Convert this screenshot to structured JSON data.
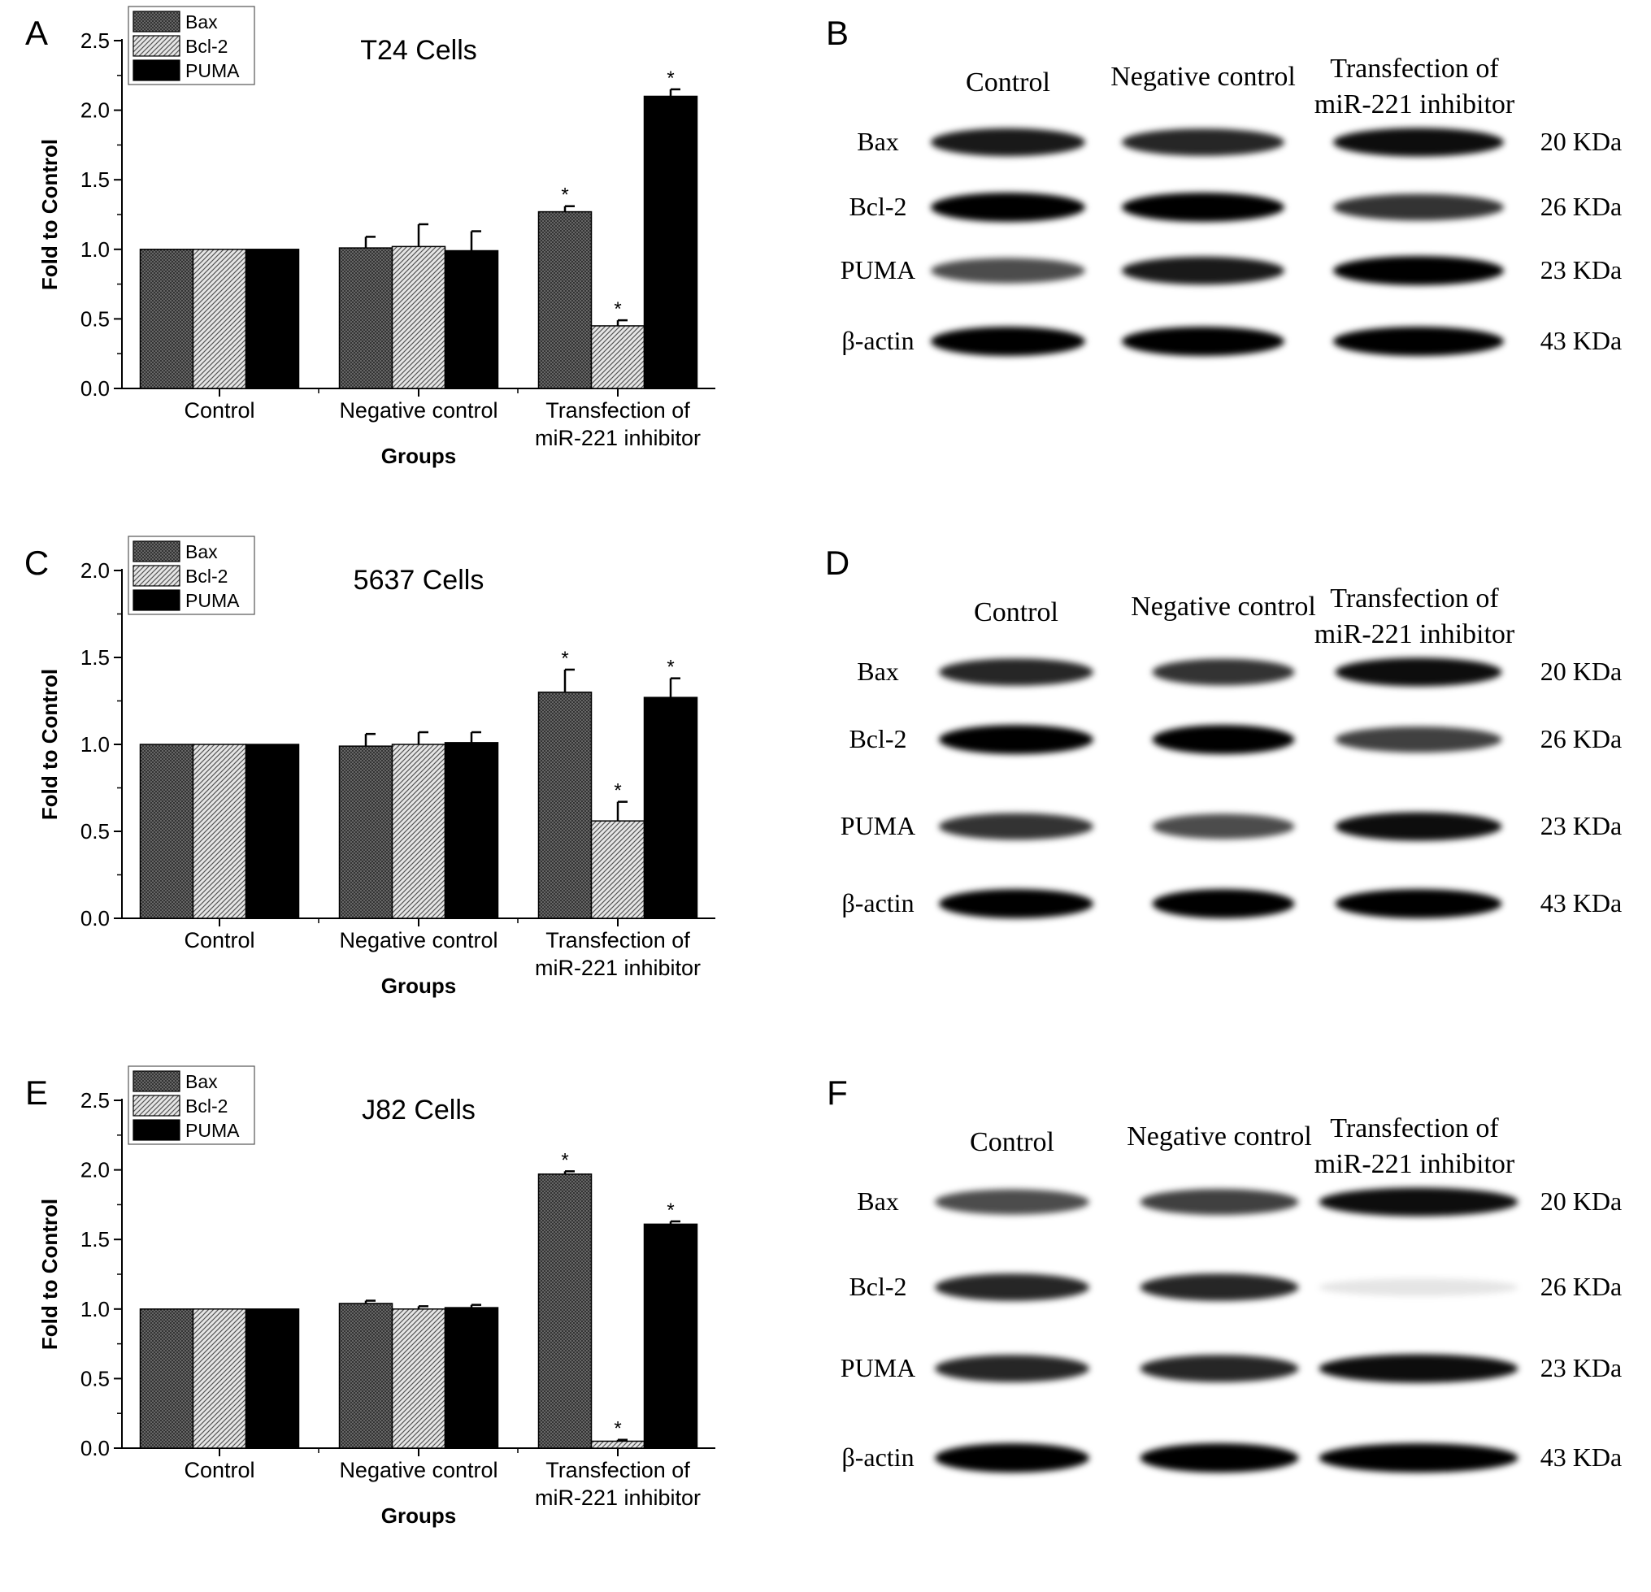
{
  "chart_data": [
    {
      "panel": "A",
      "type": "bar",
      "title": "T24 Cells",
      "xlabel": "Groups",
      "ylabel": "Fold to Control",
      "ylim": [
        0,
        2.5
      ],
      "yticks": [
        "0.0",
        "0.5",
        "1.0",
        "1.5",
        "2.0",
        "2.5"
      ],
      "categories": [
        [
          "Control"
        ],
        [
          "Negative control"
        ],
        [
          "Transfection of",
          "miR-221 inhibitor"
        ]
      ],
      "series": [
        {
          "name": "Bax",
          "values": [
            1.0,
            1.01,
            1.27
          ],
          "errors": [
            0,
            0.08,
            0.04
          ]
        },
        {
          "name": "Bcl-2",
          "values": [
            1.0,
            1.02,
            0.45
          ],
          "errors": [
            0,
            0.16,
            0.04
          ]
        },
        {
          "name": "PUMA",
          "values": [
            1.0,
            0.99,
            2.1
          ],
          "errors": [
            0,
            0.14,
            0.05
          ]
        }
      ],
      "significance": [
        [
          false,
          false,
          true
        ],
        [
          false,
          false,
          true
        ],
        [
          false,
          false,
          true
        ]
      ],
      "legend": "top-left"
    },
    {
      "panel": "C",
      "type": "bar",
      "title": "5637 Cells",
      "xlabel": "Groups",
      "ylabel": "Fold to Control",
      "ylim": [
        0,
        2.0
      ],
      "yticks": [
        "0.0",
        "0.5",
        "1.0",
        "1.5",
        "2.0"
      ],
      "categories": [
        [
          "Control"
        ],
        [
          "Negative control"
        ],
        [
          "Transfection of",
          "miR-221 inhibitor"
        ]
      ],
      "series": [
        {
          "name": "Bax",
          "values": [
            1.0,
            0.99,
            1.3
          ],
          "errors": [
            0,
            0.07,
            0.13
          ]
        },
        {
          "name": "Bcl-2",
          "values": [
            1.0,
            1.0,
            0.56
          ],
          "errors": [
            0,
            0.07,
            0.11
          ]
        },
        {
          "name": "PUMA",
          "values": [
            1.0,
            1.01,
            1.27
          ],
          "errors": [
            0,
            0.06,
            0.11
          ]
        }
      ],
      "significance": [
        [
          false,
          false,
          true
        ],
        [
          false,
          false,
          true
        ],
        [
          false,
          false,
          true
        ]
      ],
      "legend": "top-left"
    },
    {
      "panel": "E",
      "type": "bar",
      "title": "J82 Cells",
      "xlabel": "Groups",
      "ylabel": "Fold to Control",
      "ylim": [
        0,
        2.5
      ],
      "yticks": [
        "0.0",
        "0.5",
        "1.0",
        "1.5",
        "2.0",
        "2.5"
      ],
      "categories": [
        [
          "Control"
        ],
        [
          "Negative control"
        ],
        [
          "Transfection of",
          "miR-221 inhibitor"
        ]
      ],
      "series": [
        {
          "name": "Bax",
          "values": [
            1.0,
            1.04,
            1.97
          ],
          "errors": [
            0,
            0.02,
            0.02
          ]
        },
        {
          "name": "Bcl-2",
          "values": [
            1.0,
            1.0,
            0.05
          ],
          "errors": [
            0,
            0.02,
            0.01
          ]
        },
        {
          "name": "PUMA",
          "values": [
            1.0,
            1.01,
            1.61
          ],
          "errors": [
            0,
            0.02,
            0.02
          ]
        }
      ],
      "significance": [
        [
          false,
          false,
          true
        ],
        [
          false,
          false,
          true
        ],
        [
          false,
          false,
          true
        ]
      ],
      "legend": "top-left"
    }
  ],
  "blots": [
    {
      "panel": "B",
      "lanes": [
        [
          "Control"
        ],
        [
          "Negative control"
        ],
        [
          "Transfection of",
          "miR-221 inhibitor"
        ]
      ],
      "rows": [
        {
          "protein": "Bax",
          "size": "20 KDa",
          "intensity": [
            0.9,
            0.85,
            0.95
          ]
        },
        {
          "protein": "Bcl-2",
          "size": "26 KDa",
          "intensity": [
            1.0,
            1.0,
            0.8
          ]
        },
        {
          "protein": "PUMA",
          "size": "23 KDa",
          "intensity": [
            0.7,
            0.9,
            1.0
          ]
        },
        {
          "protein": "β-actin",
          "size": "43 KDa",
          "intensity": [
            1.0,
            1.0,
            1.0
          ]
        }
      ]
    },
    {
      "panel": "D",
      "lanes": [
        [
          "Control"
        ],
        [
          "Negative control"
        ],
        [
          "Transfection of",
          "miR-221 inhibitor"
        ]
      ],
      "rows": [
        {
          "protein": "Bax",
          "size": "20 KDa",
          "intensity": [
            0.85,
            0.8,
            0.95
          ]
        },
        {
          "protein": "Bcl-2",
          "size": "26 KDa",
          "intensity": [
            1.0,
            1.0,
            0.75
          ]
        },
        {
          "protein": "PUMA",
          "size": "23 KDa",
          "intensity": [
            0.8,
            0.7,
            0.95
          ]
        },
        {
          "protein": "β-actin",
          "size": "43 KDa",
          "intensity": [
            1.0,
            1.0,
            1.0
          ]
        }
      ]
    },
    {
      "panel": "F",
      "lanes": [
        [
          "Control"
        ],
        [
          "Negative control"
        ],
        [
          "Transfection of",
          "miR-221 inhibitor"
        ]
      ],
      "rows": [
        {
          "protein": "Bax",
          "size": "20 KDa",
          "intensity": [
            0.7,
            0.75,
            0.95
          ]
        },
        {
          "protein": "Bcl-2",
          "size": "26 KDa",
          "intensity": [
            0.85,
            0.85,
            0.1
          ]
        },
        {
          "protein": "PUMA",
          "size": "23 KDa",
          "intensity": [
            0.85,
            0.85,
            0.95
          ]
        },
        {
          "protein": "β-actin",
          "size": "43 KDa",
          "intensity": [
            1.0,
            1.0,
            1.0
          ]
        }
      ]
    }
  ],
  "patterns": {
    "Bax": "dark-crosshatch",
    "Bcl-2": "diagonal-light",
    "PUMA": "solid-black"
  }
}
